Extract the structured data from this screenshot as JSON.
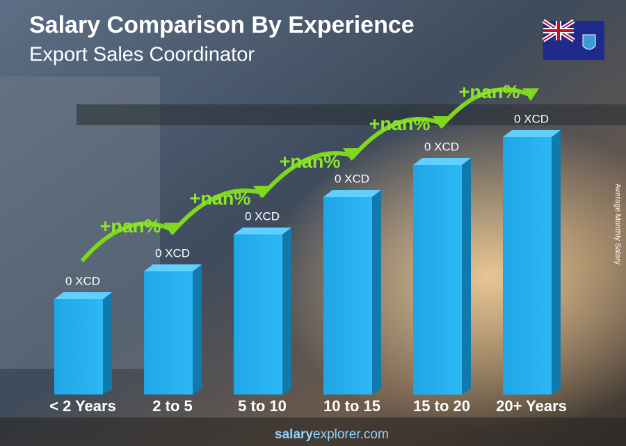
{
  "title": "Salary Comparison By Experience",
  "subtitle": "Export Sales Coordinator",
  "categories": [
    "< 2 Years",
    "2 to 5",
    "5 to 10",
    "10 to 15",
    "15 to 20",
    "20+ Years"
  ],
  "value_labels": [
    "0 XCD",
    "0 XCD",
    "0 XCD",
    "0 XCD",
    "0 XCD",
    "0 XCD"
  ],
  "change_labels": [
    "+nan%",
    "+nan%",
    "+nan%",
    "+nan%",
    "+nan%"
  ],
  "axis_label": "Average Monthly Salary",
  "footer": {
    "brand": "salary",
    "rest": "explorer.com"
  }
}
